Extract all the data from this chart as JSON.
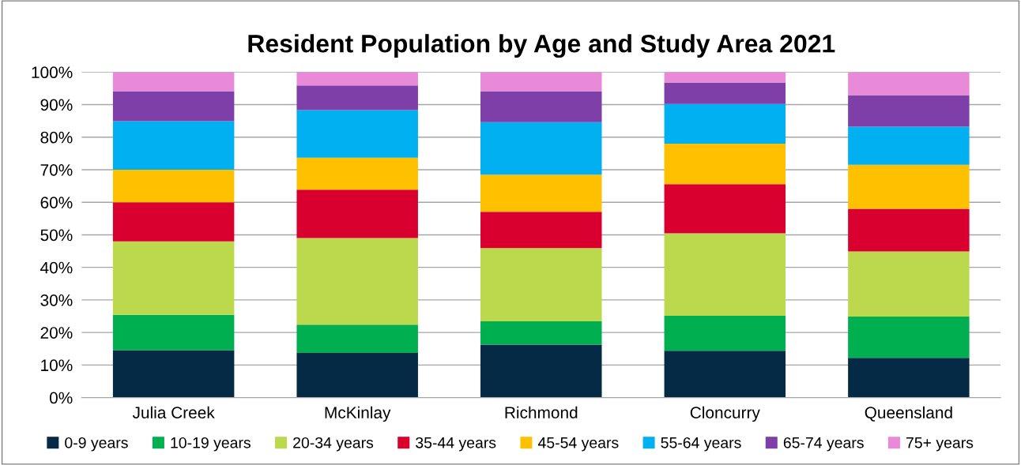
{
  "chart_data": {
    "type": "bar",
    "stacked": true,
    "title": "Resident Population by Age and Study Area 2021",
    "categories": [
      "Julia Creek",
      "McKinlay",
      "Richmond",
      "Cloncurry",
      "Queensland"
    ],
    "series": [
      {
        "name": "0-9 years",
        "color": "#042a45",
        "values": [
          14.6,
          13.7,
          16.3,
          14.4,
          12.2
        ]
      },
      {
        "name": "10-19 years",
        "color": "#00b050",
        "values": [
          10.8,
          8.7,
          7.1,
          10.7,
          12.7
        ]
      },
      {
        "name": "20-34 years",
        "color": "#bcd84c",
        "values": [
          22.6,
          26.6,
          22.5,
          25.4,
          20.0
        ]
      },
      {
        "name": "35-44 years",
        "color": "#d9002f",
        "values": [
          12.0,
          14.9,
          11.2,
          15.1,
          13.1
        ]
      },
      {
        "name": "45-54 years",
        "color": "#ffc000",
        "values": [
          10.0,
          9.8,
          11.4,
          12.4,
          13.5
        ]
      },
      {
        "name": "55-64 years",
        "color": "#00b0f0",
        "values": [
          14.9,
          14.6,
          16.1,
          12.2,
          11.7
        ]
      },
      {
        "name": "65-74 years",
        "color": "#7f3fa8",
        "values": [
          9.2,
          7.6,
          9.5,
          6.6,
          9.7
        ]
      },
      {
        "name": "75+ years",
        "color": "#e98ad9",
        "values": [
          5.9,
          4.1,
          5.9,
          3.2,
          7.1
        ]
      }
    ],
    "ylim": [
      0,
      100
    ],
    "yticks": [
      {
        "value": 0,
        "label": "0%"
      },
      {
        "value": 10,
        "label": "10%"
      },
      {
        "value": 20,
        "label": "20%"
      },
      {
        "value": 30,
        "label": "30%"
      },
      {
        "value": 40,
        "label": "40%"
      },
      {
        "value": 50,
        "label": "50%"
      },
      {
        "value": 60,
        "label": "60%"
      },
      {
        "value": 70,
        "label": "70%"
      },
      {
        "value": 80,
        "label": "80%"
      },
      {
        "value": 90,
        "label": "90%"
      },
      {
        "value": 100,
        "label": "100%"
      }
    ],
    "grid": "y",
    "legend": "bottom"
  }
}
